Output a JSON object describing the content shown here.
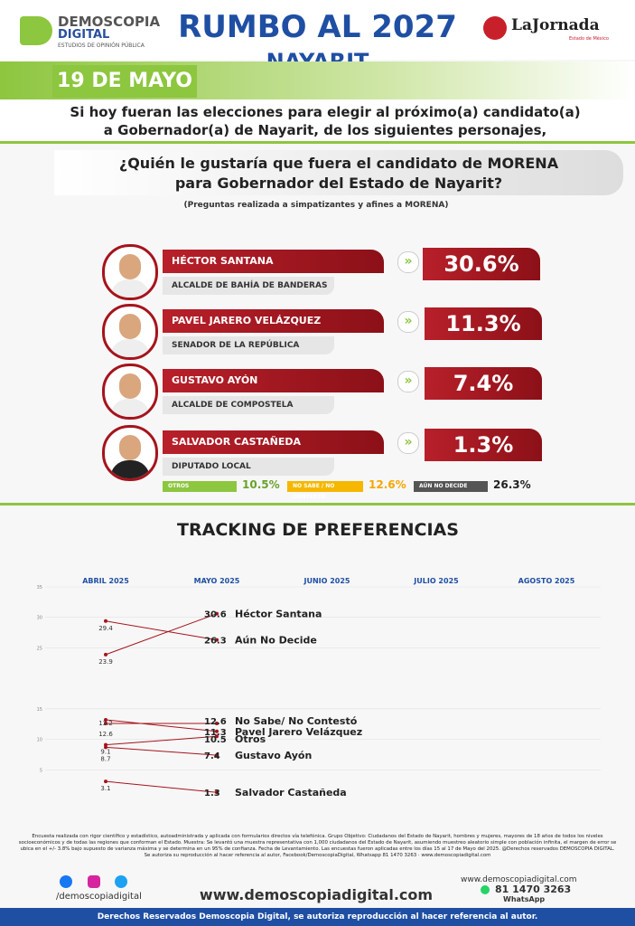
{
  "header": {
    "brand": "DEMOSCOPIA",
    "brand2": "DIGITAL",
    "tagline": "ESTUDIOS DE OPINIÓN PÚBLICA",
    "title": "RUMBO AL 2027",
    "subtitle": "NAYARIT",
    "partner": "LaJornada",
    "partner_sub": "Estado de México",
    "date": "19 DE MAYO"
  },
  "intro": "Si hoy fueran las elecciones para elegir al próximo(a) candidato(a) a Gobernador(a) de Nayarit, de los siguientes personajes,",
  "question": "¿Quién le gustaría que fuera el candidato de MORENA para Gobernador del Estado de Nayarit?",
  "note": "(Preguntas realizada a simpatizantes y afines a MORENA)",
  "candidates": [
    {
      "name": "HÉCTOR SANTANA",
      "role": "ALCALDE DE BAHÍA DE BANDERAS",
      "result": "30.6%"
    },
    {
      "name": "PAVEL JARERO VELÁZQUEZ",
      "role": "SENADOR DE LA REPÚBLICA",
      "result": "11.3%"
    },
    {
      "name": "GUSTAVO AYÓN",
      "role": "ALCALDE DE COMPOSTELA",
      "result": "7.4%"
    },
    {
      "name": "SALVADOR CASTAÑEDA",
      "role": "DIPUTADO LOCAL",
      "result": "1.3%"
    }
  ],
  "others": [
    {
      "label": "OTROS",
      "result": "10.5%"
    },
    {
      "label": "NO SABE / NO CONTESTÓ",
      "result": "12.6%"
    },
    {
      "label": "AÚN NO DECIDE",
      "result": "26.3%"
    }
  ],
  "chart_data": {
    "type": "line",
    "title": "TRACKING DE PREFERENCIAS",
    "categories": [
      "ABRIL 2025",
      "MAYO 2025",
      "JUNIO 2025",
      "JULIO 2025",
      "AGOSTO 2025"
    ],
    "series": [
      {
        "name": "Héctor Santana",
        "color": "#a5141c",
        "values": [
          23.9,
          30.6,
          null,
          null,
          null
        ]
      },
      {
        "name": "Aún No Decide",
        "color": "#a5141c",
        "values": [
          29.4,
          26.3,
          null,
          null,
          null
        ]
      },
      {
        "name": "No Sabe/ No Contestó",
        "color": "#a5141c",
        "values": [
          12.6,
          12.6,
          null,
          null,
          null
        ]
      },
      {
        "name": "Pavel Jarero Velázquez",
        "color": "#a5141c",
        "values": [
          13.2,
          11.3,
          null,
          null,
          null
        ]
      },
      {
        "name": "Otros",
        "color": "#a5141c",
        "values": [
          9.1,
          10.5,
          null,
          null,
          null
        ]
      },
      {
        "name": "Gustavo Ayón",
        "color": "#a5141c",
        "values": [
          8.7,
          7.4,
          null,
          null,
          null
        ]
      },
      {
        "name": "Salvador Castañeda",
        "color": "#a5141c",
        "values": [
          3.1,
          1.3,
          null,
          null,
          null
        ]
      }
    ],
    "ylim": [
      0,
      35
    ],
    "yticks": [
      5,
      10,
      15,
      25,
      30,
      35
    ]
  },
  "footer": {
    "methodology": "Encuesta realizada con rigor científico y estadístico, autoadministrada y aplicada con formularios directos vía telefónica. Grupo Objetivo: Ciudadanos del Estado de Nayarit, hombres y mujeres, mayores de 18 años de todos los niveles socioeconómicos y de todas las regiones que conforman el Estado. Muestra: Se levantó una muestra representativa con 1,000 ciudadanos del Estado de Nayarit, asumiendo muestreo aleatorio simple con población infinita, el margen de error se ubica en el +/- 3.8% bajo supuesto de varianza máxima y se determina en un 95% de confianza. Fecha de Levantamiento. Las encuestas fueron aplicadas entre los días 15 al 17 de Mayo del 2025. @Derechos reservados DEMOSCOPIA DIGITAL. Se autoriza su reproducción al hacer referencia al autor, Facebook/DemoscopiaDigital, Whatsapp 81 1470 3263 · www.demoscopiadigital.com",
    "handle": "/demoscopiadigital",
    "website": "www.demoscopiadigital.com",
    "site_small": "www.demoscopiadigital.com",
    "phone": "81 1470 3263",
    "whatsapp": "WhatsApp",
    "rights": "Derechos Reservados Demoscopia Digital, se autoriza reproducción al hacer referencia al autor."
  }
}
